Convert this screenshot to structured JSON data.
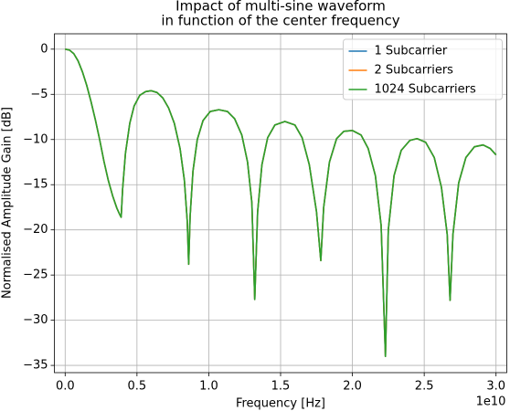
{
  "chart_data": {
    "type": "line",
    "title": [
      "Impact of multi-sine waveform",
      "in function of the center frequency"
    ],
    "xlabel": "Frequency [Hz]",
    "ylabel": "Normalised Amplitude Gain [dB]",
    "x_offset_label": "1e10",
    "xlim": [
      -0.075,
      3.075
    ],
    "ylim": [
      -35.8,
      1.7
    ],
    "xticks": [
      {
        "value": 0,
        "label": "0.0"
      },
      {
        "value": 0.5,
        "label": "0.5"
      },
      {
        "value": 1,
        "label": "1.0"
      },
      {
        "value": 1.5,
        "label": "1.5"
      },
      {
        "value": 2,
        "label": "2.0"
      },
      {
        "value": 2.5,
        "label": "2.5"
      },
      {
        "value": 3,
        "label": "3.0"
      }
    ],
    "yticks": [
      0,
      {
        "value": -5,
        "label": "−5"
      },
      {
        "value": -10,
        "label": "−10"
      },
      {
        "value": -15,
        "label": "−15"
      },
      {
        "value": -20,
        "label": "−20"
      },
      {
        "value": -25,
        "label": "−25"
      },
      {
        "value": -30,
        "label": "−30"
      },
      {
        "value": -35,
        "label": "−35"
      }
    ],
    "grid": true,
    "legend": "upper right",
    "x": [
      0,
      0.03,
      0.06,
      0.09,
      0.12,
      0.15,
      0.18,
      0.21,
      0.24,
      0.27,
      0.3,
      0.33,
      0.36,
      0.38,
      0.39,
      0.4,
      0.42,
      0.45,
      0.48,
      0.52,
      0.56,
      0.6,
      0.64,
      0.68,
      0.72,
      0.76,
      0.8,
      0.83,
      0.85,
      0.86,
      0.87,
      0.89,
      0.92,
      0.96,
      1.01,
      1.07,
      1.13,
      1.18,
      1.23,
      1.27,
      1.3,
      1.32,
      1.34,
      1.37,
      1.41,
      1.46,
      1.53,
      1.6,
      1.65,
      1.7,
      1.75,
      1.78,
      1.8,
      1.84,
      1.89,
      1.94,
      2.0,
      2.06,
      2.11,
      2.16,
      2.2,
      2.23,
      2.25,
      2.29,
      2.34,
      2.4,
      2.45,
      2.51,
      2.57,
      2.62,
      2.66,
      2.68,
      2.7,
      2.74,
      2.79,
      2.85,
      2.91,
      2.96,
      3.0
    ],
    "series": [
      {
        "name": "1 Subcarrier",
        "color": "#1f77b4",
        "values": [
          0,
          -0.1,
          -0.5,
          -1.3,
          -2.5,
          -4.0,
          -5.8,
          -7.8,
          -10,
          -12.4,
          -14.5,
          -16.2,
          -17.6,
          -18.3,
          -18.6,
          -15.5,
          -11.5,
          -8.2,
          -6.3,
          -5.1,
          -4.7,
          -4.6,
          -4.8,
          -5.4,
          -6.5,
          -8.2,
          -11.0,
          -14.5,
          -19,
          -23.8,
          -18.5,
          -13.5,
          -10,
          -7.9,
          -6.9,
          -6.7,
          -6.9,
          -7.7,
          -9.5,
          -12.5,
          -17,
          -27.7,
          -18,
          -12.8,
          -9.8,
          -8.4,
          -8.0,
          -8.4,
          -9.8,
          -12.8,
          -18,
          -23.4,
          -17.5,
          -12.5,
          -9.9,
          -9.1,
          -9.0,
          -9.5,
          -11.0,
          -14.0,
          -19.5,
          -34,
          -20,
          -14,
          -11.2,
          -10.1,
          -9.9,
          -10.3,
          -12,
          -15.3,
          -20.5,
          -27.8,
          -20.5,
          -14.8,
          -12,
          -10.8,
          -10.6,
          -11.0,
          -11.7
        ]
      },
      {
        "name": "2 Subcarriers",
        "color": "#ff7f0e",
        "values": [
          0,
          -0.1,
          -0.5,
          -1.3,
          -2.5,
          -4.0,
          -5.8,
          -7.8,
          -10,
          -12.4,
          -14.5,
          -16.2,
          -17.6,
          -18.3,
          -18.6,
          -15.5,
          -11.5,
          -8.2,
          -6.3,
          -5.1,
          -4.7,
          -4.6,
          -4.8,
          -5.4,
          -6.5,
          -8.2,
          -11.0,
          -14.5,
          -19,
          -23.8,
          -18.5,
          -13.5,
          -10,
          -7.9,
          -6.9,
          -6.7,
          -6.9,
          -7.7,
          -9.5,
          -12.5,
          -17,
          -27.7,
          -18,
          -12.8,
          -9.8,
          -8.4,
          -8.0,
          -8.4,
          -9.8,
          -12.8,
          -18,
          -23.4,
          -17.5,
          -12.5,
          -9.9,
          -9.1,
          -9.0,
          -9.5,
          -11.0,
          -14.0,
          -19.5,
          -34,
          -20,
          -14,
          -11.2,
          -10.1,
          -9.9,
          -10.3,
          -12,
          -15.3,
          -20.5,
          -27.8,
          -20.5,
          -14.8,
          -12,
          -10.8,
          -10.6,
          -11.0,
          -11.7
        ]
      },
      {
        "name": "1024 Subcarriers",
        "color": "#2ca02c",
        "values": [
          0,
          -0.1,
          -0.5,
          -1.3,
          -2.5,
          -4.0,
          -5.8,
          -7.8,
          -10,
          -12.4,
          -14.5,
          -16.2,
          -17.6,
          -18.3,
          -18.6,
          -15.5,
          -11.5,
          -8.2,
          -6.3,
          -5.1,
          -4.7,
          -4.6,
          -4.8,
          -5.4,
          -6.5,
          -8.2,
          -11.0,
          -14.5,
          -19,
          -23.8,
          -18.5,
          -13.5,
          -10,
          -7.9,
          -6.9,
          -6.7,
          -6.9,
          -7.7,
          -9.5,
          -12.5,
          -17,
          -27.7,
          -18,
          -12.8,
          -9.8,
          -8.4,
          -8.0,
          -8.4,
          -9.8,
          -12.8,
          -18,
          -23.4,
          -17.5,
          -12.5,
          -9.9,
          -9.1,
          -9.0,
          -9.5,
          -11.0,
          -14.0,
          -19.5,
          -34,
          -20,
          -14,
          -11.2,
          -10.1,
          -9.9,
          -10.3,
          -12,
          -15.3,
          -20.5,
          -27.8,
          -20.5,
          -14.8,
          -12,
          -10.8,
          -10.6,
          -11.0,
          -11.7
        ]
      }
    ]
  }
}
